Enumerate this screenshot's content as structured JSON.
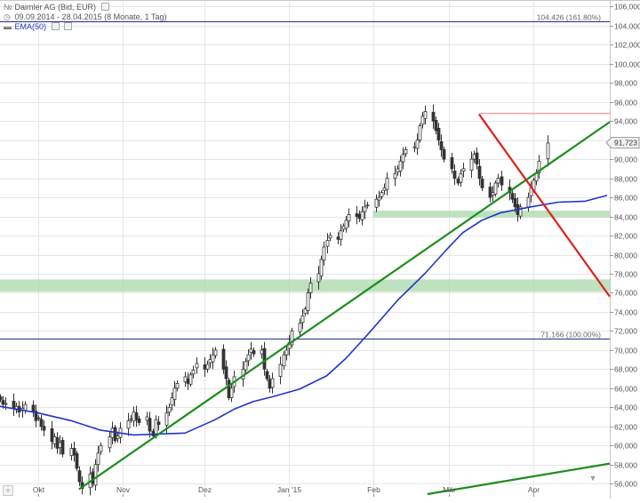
{
  "header": {
    "title": "Daimler AG (Bid, EUR)",
    "date_range": "09.09.2014 - 28.04.2015 (8 Monate, 1 Tag)",
    "indicator": "EMA(50)"
  },
  "controls": {
    "add_label": "+",
    "scroll_label": "▼"
  },
  "colors": {
    "candle": "#333333",
    "ema": "#1f34c8",
    "trend_up": "#1e8c1e",
    "trend_down": "#e0201c",
    "support_zone": "#a8d8a8",
    "level_line": "#1f2f8a",
    "high_line": "#f0a8a8",
    "grid": "#e6e6e6",
    "axis_text": "#555555"
  },
  "chart_data": {
    "type": "candlestick",
    "title": "Daimler AG (Bid, EUR)",
    "xlabel": "",
    "ylabel": "",
    "ylim": [
      54.9,
      106.5
    ],
    "xlim": [
      "2014-09-17",
      "2015-04-29"
    ],
    "x_ticks": [
      {
        "date": "2014-10-01",
        "label": "Okt"
      },
      {
        "date": "2014-11-01",
        "label": "Nov"
      },
      {
        "date": "2014-12-01",
        "label": "Dez"
      },
      {
        "date": "2015-01-01",
        "label": "Jan '15"
      },
      {
        "date": "2015-02-01",
        "label": "Feb"
      },
      {
        "date": "2015-03-01",
        "label": "Mär"
      },
      {
        "date": "2015-04-01",
        "label": "Apr"
      }
    ],
    "y_ticks": [
      {
        "value": 56,
        "label": "56,000"
      },
      {
        "value": 58,
        "label": "58,000"
      },
      {
        "value": 60,
        "label": "60,000"
      },
      {
        "value": 62,
        "label": "62,000"
      },
      {
        "value": 64,
        "label": "64,000"
      },
      {
        "value": 66,
        "label": "66,000"
      },
      {
        "value": 68,
        "label": "68,000"
      },
      {
        "value": 70,
        "label": "70,000"
      },
      {
        "value": 72,
        "label": "72,000"
      },
      {
        "value": 74,
        "label": "74,000"
      },
      {
        "value": 76,
        "label": "76,000"
      },
      {
        "value": 78,
        "label": "78,000"
      },
      {
        "value": 80,
        "label": "80,000"
      },
      {
        "value": 82,
        "label": "82,000"
      },
      {
        "value": 84,
        "label": "84,000"
      },
      {
        "value": 86,
        "label": "86,000"
      },
      {
        "value": 88,
        "label": "88,000"
      },
      {
        "value": 90,
        "label": "90,000"
      },
      {
        "value": 92,
        "label": "92,000"
      },
      {
        "value": 94,
        "label": "94,000"
      },
      {
        "value": 96,
        "label": "96,000"
      },
      {
        "value": 98,
        "label": "98,000"
      },
      {
        "value": 100,
        "label": "100,000"
      },
      {
        "value": 102,
        "label": "102,000"
      },
      {
        "value": 104,
        "label": "104,000"
      },
      {
        "value": 106,
        "label": "106,000"
      }
    ],
    "grid": true,
    "legend": "top-left",
    "closes": [
      64.8,
      64.3,
      64.4,
      63.9,
      64.1,
      63.5,
      63.9,
      64.3,
      63.5,
      62.6,
      62.9,
      62.0,
      61.6,
      60.4,
      60.9,
      59.7,
      60.3,
      59.1,
      59.7,
      59.0,
      57.6,
      56.2,
      55.5,
      57.0,
      56.0,
      58.0,
      59.2,
      60.0,
      60.9,
      61.8,
      60.5,
      61.0,
      61.8,
      62.6,
      62.8,
      63.5,
      62.7,
      62.4,
      63.0,
      61.5,
      61.0,
      62.7,
      62.2,
      63.4,
      64.0,
      65.0,
      66.0,
      66.5,
      67.2,
      66.5,
      67.4,
      67.9,
      68.6,
      68.0,
      68.5,
      69.0,
      69.5,
      70.0,
      68.0,
      67.0,
      65.0,
      66.0,
      67.2,
      68.0,
      68.8,
      69.5,
      70.1,
      69.6,
      70.0,
      68.0,
      67.0,
      66.0,
      67.0,
      68.5,
      69.5,
      70.0,
      70.8,
      72.0,
      72.8,
      73.6,
      74.3,
      76.0,
      77.0,
      78.0,
      79.5,
      80.8,
      81.5,
      82.0,
      81.6,
      82.5,
      83.0,
      83.6,
      84.2,
      84.0,
      83.8,
      84.5,
      85.0,
      85.2,
      85.8,
      86.0,
      86.5,
      87.0,
      88.0,
      88.5,
      89.0,
      89.8,
      90.5,
      91.0,
      91.3,
      92.0,
      93.5,
      94.5,
      95.0,
      94.0,
      93.0,
      92.0,
      91.0,
      90.0,
      89.0,
      88.0,
      87.5,
      88.5,
      89.0,
      90.0,
      90.5,
      89.5,
      88.0,
      87.0,
      86.0,
      86.5,
      87.5,
      88.0,
      87.3,
      86.5,
      85.8,
      85.0,
      84.2,
      85.0,
      86.0,
      87.0,
      87.8,
      88.5,
      89.8,
      91.7
    ],
    "ema50": [
      {
        "date": "2014-09-17",
        "value": 64.1
      },
      {
        "date": "2014-10-01",
        "value": 63.4
      },
      {
        "date": "2014-10-13",
        "value": 62.6
      },
      {
        "date": "2014-10-24",
        "value": 61.6
      },
      {
        "date": "2014-11-05",
        "value": 61.1
      },
      {
        "date": "2014-11-14",
        "value": 61.2
      },
      {
        "date": "2014-11-24",
        "value": 61.3
      },
      {
        "date": "2014-12-05",
        "value": 62.7
      },
      {
        "date": "2014-12-12",
        "value": 63.8
      },
      {
        "date": "2014-12-19",
        "value": 64.6
      },
      {
        "date": "2014-12-26",
        "value": 65.1
      },
      {
        "date": "2015-01-05",
        "value": 65.9
      },
      {
        "date": "2015-01-15",
        "value": 67.3
      },
      {
        "date": "2015-01-22",
        "value": 69.1
      },
      {
        "date": "2015-01-30",
        "value": 71.6
      },
      {
        "date": "2015-02-10",
        "value": 75.2
      },
      {
        "date": "2015-02-20",
        "value": 78.0
      },
      {
        "date": "2015-02-28",
        "value": 80.5
      },
      {
        "date": "2015-03-06",
        "value": 82.3
      },
      {
        "date": "2015-03-13",
        "value": 83.6
      },
      {
        "date": "2015-03-20",
        "value": 84.4
      },
      {
        "date": "2015-03-31",
        "value": 85.0
      },
      {
        "date": "2015-04-10",
        "value": 85.5
      },
      {
        "date": "2015-04-20",
        "value": 85.6
      },
      {
        "date": "2015-04-28",
        "value": 86.2
      }
    ],
    "trendlines": [
      {
        "id": "uptrend-main",
        "color": "trend_up",
        "from": {
          "date": "2014-10-16",
          "value": 55.4
        },
        "to": {
          "date": "2015-04-29",
          "value": 93.9
        }
      },
      {
        "id": "uptrend-lower",
        "color": "trend_up",
        "from": {
          "date": "2015-02-21",
          "value": 54.9
        },
        "to": {
          "date": "2015-04-29",
          "value": 58.1
        }
      },
      {
        "id": "downtrend",
        "color": "trend_down",
        "from": {
          "date": "2015-03-12",
          "value": 94.7
        },
        "to": {
          "date": "2015-04-29",
          "value": 75.6
        }
      }
    ],
    "zones": [
      {
        "id": "support-76",
        "low": 76.1,
        "high": 77.4,
        "from": "2014-09-17",
        "to": "2015-04-29"
      },
      {
        "id": "support-84",
        "low": 83.9,
        "high": 84.6,
        "from": "2015-02-01",
        "to": "2015-04-29"
      }
    ],
    "levels": [
      {
        "id": "fib-161",
        "value": 104.426,
        "label": "104,426 (161,80%)"
      },
      {
        "id": "fib-100",
        "value": 71.166,
        "label": "71,166 (100,00%)"
      }
    ],
    "high_line": {
      "value": 94.8,
      "from": "2015-03-12",
      "to": "2015-04-29"
    },
    "last_price": {
      "value": 91.723,
      "label": "91,723"
    }
  }
}
